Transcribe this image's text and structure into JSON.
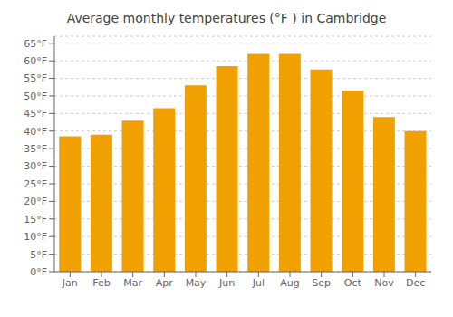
{
  "chart_data": {
    "type": "bar",
    "title": "Average monthly temperatures (°F ) in Cambridge",
    "categories": [
      "Jan",
      "Feb",
      "Mar",
      "Apr",
      "May",
      "Jun",
      "Jul",
      "Aug",
      "Sep",
      "Oct",
      "Nov",
      "Dec"
    ],
    "values": [
      38.5,
      39.0,
      43.0,
      46.5,
      53.0,
      58.5,
      62.0,
      62.0,
      57.5,
      51.5,
      44.0,
      40.0
    ],
    "color": "#F0A000",
    "ylim": [
      0,
      67
    ],
    "yticks": [
      {
        "value": 0,
        "label": "0°F"
      },
      {
        "value": 5,
        "label": "5°F"
      },
      {
        "value": 10,
        "label": "10°F"
      },
      {
        "value": 15,
        "label": "15°F"
      },
      {
        "value": 20,
        "label": "20°F"
      },
      {
        "value": 25,
        "label": "25°F"
      },
      {
        "value": 30,
        "label": "30°F"
      },
      {
        "value": 35,
        "label": "35°F"
      },
      {
        "value": 40,
        "label": "40°F"
      },
      {
        "value": 45,
        "label": "45°F"
      },
      {
        "value": 50,
        "label": "50°F"
      },
      {
        "value": 55,
        "label": "55°F"
      },
      {
        "value": 60,
        "label": "60°F"
      },
      {
        "value": 65,
        "label": "65°F"
      }
    ],
    "grid": true
  }
}
